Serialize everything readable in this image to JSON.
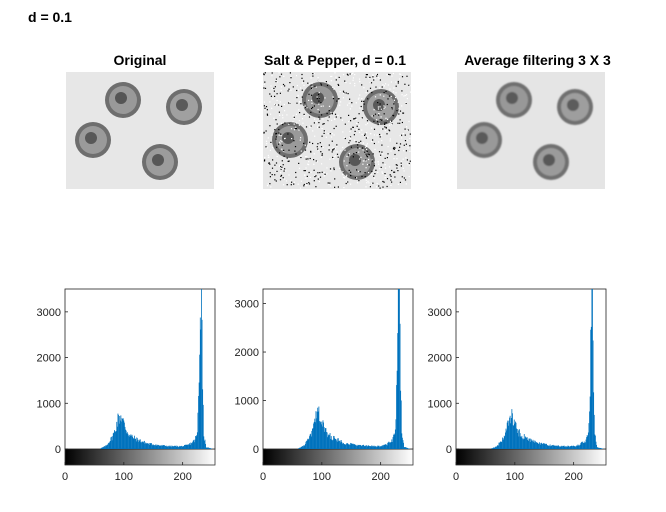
{
  "figure": {
    "title": "d = 0.1"
  },
  "panels": [
    {
      "title": "Original",
      "noise": "none"
    },
    {
      "title": "Salt & Pepper, d = 0.1",
      "noise": "salt-pepper"
    },
    {
      "title": "Average filtering  3 X 3",
      "noise": "smoothed"
    }
  ],
  "chart_data": [
    {
      "type": "bar",
      "title": "",
      "xlabel": "",
      "ylabel": "",
      "xlim": [
        0,
        255
      ],
      "ylim": [
        0,
        3500
      ],
      "xticks": [
        0,
        100,
        200
      ],
      "yticks": [
        0,
        1000,
        2000,
        3000
      ],
      "x": [
        60,
        70,
        80,
        85,
        90,
        95,
        100,
        105,
        110,
        120,
        130,
        140,
        160,
        180,
        200,
        210,
        220,
        225,
        228,
        230,
        232,
        234,
        236,
        240,
        250
      ],
      "values": [
        10,
        70,
        250,
        400,
        650,
        740,
        560,
        400,
        300,
        220,
        170,
        120,
        80,
        60,
        60,
        90,
        180,
        330,
        1500,
        3400,
        3450,
        1600,
        300,
        40,
        5
      ]
    },
    {
      "type": "bar",
      "title": "",
      "xlabel": "",
      "ylabel": "",
      "xlim": [
        0,
        255
      ],
      "ylim": [
        0,
        3300
      ],
      "xticks": [
        0,
        100,
        200
      ],
      "yticks": [
        0,
        1000,
        2000,
        3000
      ],
      "x": [
        60,
        70,
        80,
        85,
        90,
        95,
        100,
        105,
        110,
        120,
        130,
        140,
        160,
        180,
        200,
        210,
        220,
        225,
        228,
        230,
        232,
        234,
        236,
        240,
        250
      ],
      "values": [
        10,
        70,
        250,
        400,
        650,
        740,
        560,
        400,
        300,
        220,
        170,
        120,
        80,
        60,
        60,
        90,
        180,
        330,
        1500,
        3250,
        3300,
        1600,
        300,
        40,
        5
      ]
    },
    {
      "type": "bar",
      "title": "",
      "xlabel": "",
      "ylabel": "",
      "xlim": [
        0,
        255
      ],
      "ylim": [
        0,
        3500
      ],
      "xticks": [
        0,
        100,
        200
      ],
      "yticks": [
        0,
        1000,
        2000,
        3000
      ],
      "x": [
        60,
        70,
        80,
        85,
        90,
        95,
        100,
        105,
        110,
        120,
        130,
        140,
        160,
        180,
        200,
        210,
        220,
        225,
        228,
        230,
        232,
        234,
        236,
        240,
        250
      ],
      "values": [
        10,
        60,
        240,
        390,
        640,
        720,
        560,
        400,
        310,
        230,
        180,
        130,
        80,
        60,
        60,
        90,
        180,
        320,
        1400,
        3400,
        3450,
        1500,
        300,
        40,
        5
      ]
    }
  ]
}
